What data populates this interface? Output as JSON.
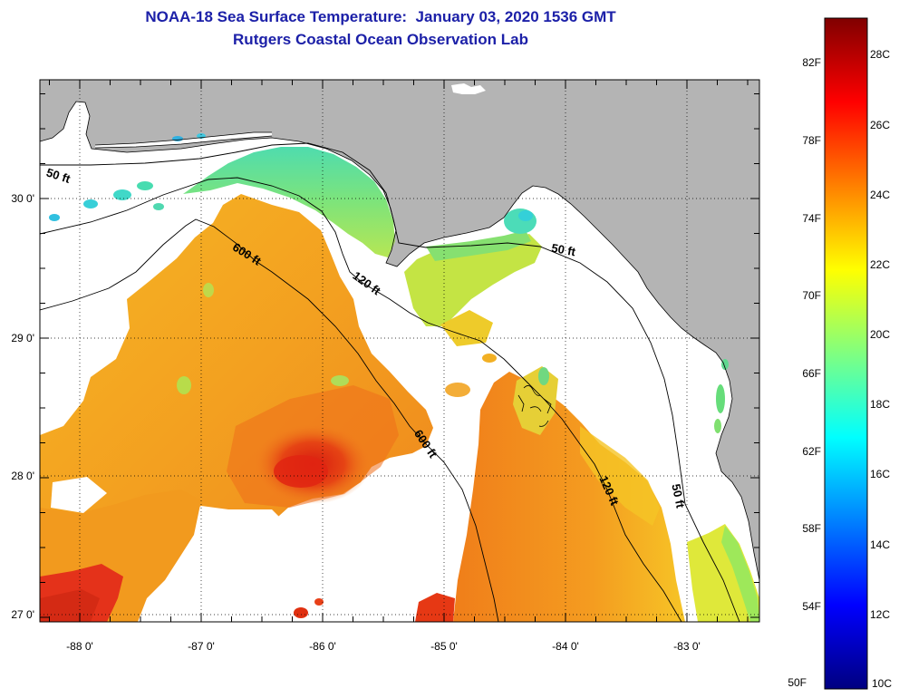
{
  "title": {
    "line1": "NOAA-18 Sea Surface Temperature:  January 03, 2020 1536 GMT",
    "line2": "Rutgers Coastal Ocean Observation Lab"
  },
  "map": {
    "lat_labels": [
      "30 0'",
      "29 0'",
      "28 0'",
      "27 0'"
    ],
    "lon_labels": [
      "-88 0'",
      "-87 0'",
      "-86 0'",
      "-85 0'",
      "-84 0'",
      "-83 0'"
    ],
    "contour_labels": [
      "50 ft",
      "50 ft",
      "50 ft",
      "120 ft",
      "120 ft",
      "600 ft",
      "600 ft"
    ]
  },
  "colorbar": {
    "fahrenheit_labels": [
      "82F",
      "78F",
      "74F",
      "70F",
      "66F",
      "62F",
      "58F",
      "54F",
      "50F"
    ],
    "celsius_labels": [
      "28C",
      "26C",
      "24C",
      "22C",
      "20C",
      "18C",
      "16C",
      "14C",
      "12C",
      "10C"
    ],
    "colors": [
      "#800000",
      "#ff0000",
      "#ff8000",
      "#ffff00",
      "#80ff80",
      "#00ffff",
      "#0080ff",
      "#0000ff",
      "#000080"
    ]
  },
  "palette": {
    "title": "#1c20a8",
    "land": "#b4b4b4",
    "no_data": "#ffffff"
  }
}
